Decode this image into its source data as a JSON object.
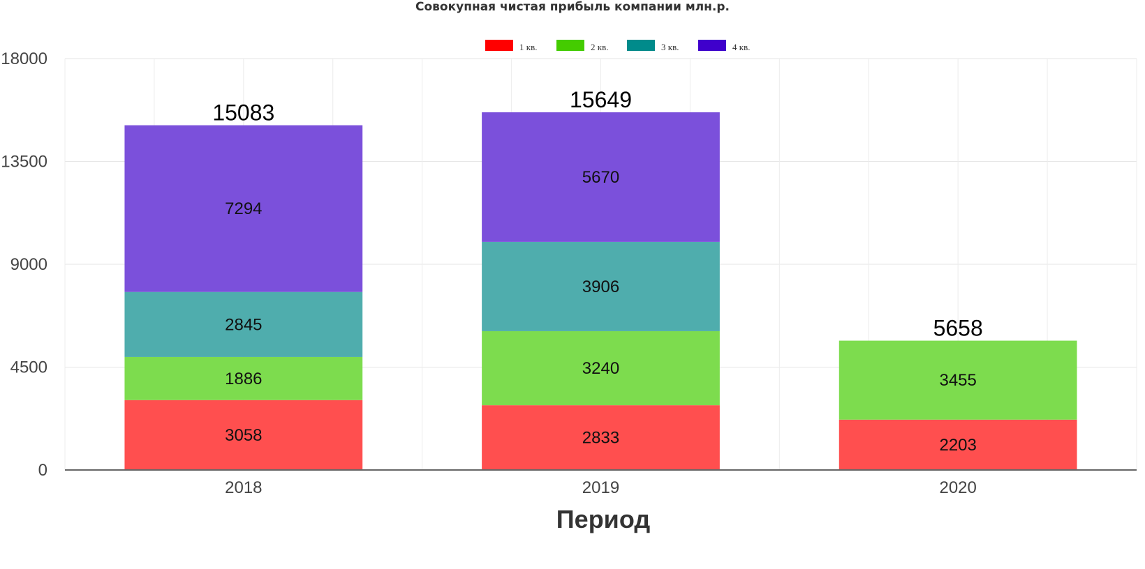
{
  "chart_data": {
    "type": "bar",
    "stacked": true,
    "title": "Совокупная чистая прибыль компании млн.р.",
    "xlabel": "Период",
    "ylabel": "",
    "categories": [
      "2018",
      "2019",
      "2020"
    ],
    "ylim": [
      0,
      18000
    ],
    "yticks": [
      "0",
      "4500",
      "9000",
      "13500",
      "18000"
    ],
    "grid": true,
    "legend_position": "top-center",
    "series": [
      {
        "name": "1 кв.",
        "legend_color": "#ff0000",
        "color": "#ff4f4f",
        "values": [
          3058,
          2833,
          2203
        ]
      },
      {
        "name": "2 кв.",
        "legend_color": "#44cc00",
        "color": "#7ddc4e",
        "values": [
          1886,
          3240,
          3455
        ]
      },
      {
        "name": "3 кв.",
        "legend_color": "#008b8b",
        "color": "#4fadad",
        "values": [
          2845,
          3906,
          null
        ]
      },
      {
        "name": "4 кв.",
        "legend_color": "#3f00cc",
        "color": "#7b50db",
        "values": [
          7294,
          5670,
          null
        ]
      }
    ],
    "totals": [
      15083,
      15649,
      5658
    ]
  }
}
